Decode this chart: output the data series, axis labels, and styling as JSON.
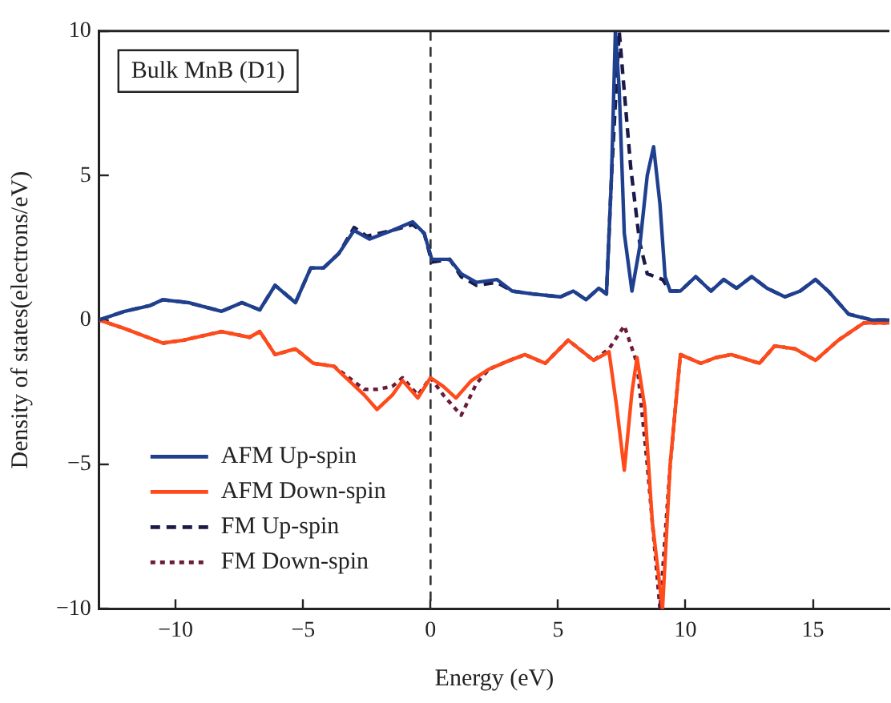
{
  "chart_data": {
    "type": "line",
    "xlabel": "Energy (eV)",
    "ylabel": "Density of states(electrons/eV)",
    "annotations": [
      "Bulk MnB (D1)"
    ],
    "xlim": [
      -13,
      18
    ],
    "xticks": [
      -10,
      -5,
      0,
      5,
      10,
      15
    ],
    "ylim": [
      -10,
      10
    ],
    "yticks": [
      -10,
      -5,
      0,
      5,
      10
    ],
    "grid": false,
    "legend": "bottom left",
    "marker": "none",
    "ref_lines": [
      {
        "axis": "x",
        "value": 0,
        "color": "#333333",
        "line_style": "dashed"
      }
    ],
    "series": [
      {
        "name": "AFM Up-spin",
        "color": "#1f3f8f",
        "line_style": "solid",
        "x": [
          -13,
          -12,
          -11,
          -10.5,
          -9.5,
          -8.2,
          -7.4,
          -6.7,
          -6.1,
          -5.3,
          -4.7,
          -4.2,
          -3.6,
          -3.0,
          -2.4,
          -1.5,
          -0.7,
          -0.25,
          0.05,
          0.75,
          1.2,
          1.8,
          2.6,
          3.2,
          4,
          5.1,
          5.6,
          6.1,
          6.6,
          6.9,
          7.1,
          7.25,
          7.4,
          7.6,
          7.9,
          8.2,
          8.5,
          8.75,
          9.0,
          9.2,
          9.4,
          9.8,
          10.4,
          11,
          11.5,
          12,
          12.6,
          13.2,
          13.9,
          14.5,
          15.1,
          15.6,
          16.4,
          17.3,
          18
        ],
        "values": [
          0,
          0.3,
          0.5,
          0.7,
          0.6,
          0.3,
          0.6,
          0.35,
          1.2,
          0.6,
          1.8,
          1.8,
          2.3,
          3.1,
          2.8,
          3.1,
          3.4,
          3.0,
          2.1,
          2.1,
          1.6,
          1.3,
          1.4,
          1.0,
          0.9,
          0.8,
          1.0,
          0.7,
          1.1,
          0.9,
          5,
          10,
          8,
          3,
          1,
          2.5,
          5,
          6.0,
          4,
          1.5,
          1.0,
          1.0,
          1.5,
          1.0,
          1.4,
          1.1,
          1.5,
          1.1,
          0.8,
          1.0,
          1.4,
          1.0,
          0.2,
          0,
          0
        ]
      },
      {
        "name": "AFM Down-spin",
        "color": "#ff4a1a",
        "line_style": "solid",
        "x": [
          -13,
          -12,
          -10.5,
          -9.7,
          -8.2,
          -7.1,
          -6.7,
          -6.1,
          -5.3,
          -4.6,
          -3.8,
          -3.2,
          -2.6,
          -2.1,
          -1.5,
          -1.1,
          -0.5,
          0,
          0.5,
          1.0,
          1.6,
          2.3,
          3.1,
          3.7,
          4.5,
          5.4,
          6.4,
          7.0,
          7.3,
          7.6,
          7.9,
          8.1,
          8.4,
          8.7,
          9.1,
          9.4,
          9.8,
          10.6,
          11.2,
          11.8,
          12.9,
          13.5,
          14.3,
          15.1,
          16.0,
          17.0,
          18
        ],
        "values": [
          0,
          -0.3,
          -0.8,
          -0.7,
          -0.4,
          -0.6,
          -0.4,
          -1.2,
          -1.0,
          -1.5,
          -1.6,
          -2.1,
          -2.6,
          -3.1,
          -2.6,
          -2.1,
          -2.7,
          -2.0,
          -2.3,
          -2.7,
          -2.1,
          -1.7,
          -1.4,
          -1.2,
          -1.5,
          -0.7,
          -1.4,
          -1.1,
          -3,
          -5.2,
          -2.5,
          -1.3,
          -3,
          -7,
          -10,
          -5,
          -1.2,
          -1.5,
          -1.3,
          -1.2,
          -1.5,
          -0.9,
          -1.0,
          -1.4,
          -0.7,
          -0.1,
          -0.1
        ]
      },
      {
        "name": "FM Up-spin",
        "color": "#1a1a4a",
        "line_style": "dashed",
        "x": [
          -13,
          -12,
          -11,
          -10.5,
          -9.5,
          -8.2,
          -7.4,
          -6.7,
          -6.1,
          -5.3,
          -4.7,
          -4.2,
          -3.6,
          -3.0,
          -2.5,
          -1.5,
          -0.7,
          -0.25,
          0.05,
          0.75,
          1.2,
          1.8,
          2.6,
          3.2,
          4,
          5.1,
          5.6,
          6.1,
          6.6,
          6.9,
          7.1,
          7.4,
          7.6,
          7.85,
          8.2,
          8.5,
          9.1,
          9.4,
          9.8,
          10.4,
          11,
          11.5,
          12,
          12.6,
          13.2,
          13.9,
          14.5,
          15.1,
          15.6,
          16.4,
          17.3,
          18
        ],
        "values": [
          0,
          0.3,
          0.5,
          0.7,
          0.6,
          0.3,
          0.6,
          0.35,
          1.2,
          0.6,
          1.8,
          1.8,
          2.3,
          3.2,
          2.9,
          3.1,
          3.3,
          3.0,
          2.0,
          2.1,
          1.5,
          1.2,
          1.3,
          1.0,
          0.9,
          0.8,
          1.0,
          0.7,
          1.1,
          0.9,
          5,
          10,
          7.9,
          5.3,
          2.7,
          1.6,
          1.4,
          1.0,
          1.0,
          1.5,
          1.0,
          1.4,
          1.1,
          1.5,
          1.1,
          0.8,
          1.0,
          1.4,
          1.0,
          0.2,
          0,
          0
        ]
      },
      {
        "name": "FM Down-spin",
        "color": "#6a1a3a",
        "line_style": "dotted",
        "x": [
          -13,
          -12,
          -10.5,
          -9.7,
          -8.2,
          -7.1,
          -6.7,
          -6.1,
          -5.3,
          -4.6,
          -3.8,
          -3.2,
          -2.6,
          -2.1,
          -1.5,
          -1.1,
          -0.5,
          0,
          0.5,
          1.2,
          1.8,
          2.3,
          3.1,
          3.7,
          4.5,
          5.4,
          6.4,
          7.0,
          7.6,
          8.1,
          8.5,
          9.0,
          9.4,
          9.8,
          10.6,
          11.2,
          11.8,
          12.9,
          13.5,
          14.3,
          15.1,
          16.0,
          17.0,
          18
        ],
        "values": [
          0,
          -0.3,
          -0.8,
          -0.7,
          -0.4,
          -0.6,
          -0.4,
          -1.2,
          -1.0,
          -1.5,
          -1.6,
          -2.0,
          -2.4,
          -2.4,
          -2.3,
          -2.0,
          -2.6,
          -2.0,
          -2.6,
          -3.3,
          -2.2,
          -1.7,
          -1.4,
          -1.2,
          -1.5,
          -0.7,
          -1.4,
          -1.0,
          -0.2,
          -1.5,
          -5,
          -10,
          -5,
          -1.2,
          -1.5,
          -1.3,
          -1.2,
          -1.5,
          -0.9,
          -1.0,
          -1.4,
          -0.7,
          -0.1,
          -0.1
        ]
      }
    ]
  }
}
